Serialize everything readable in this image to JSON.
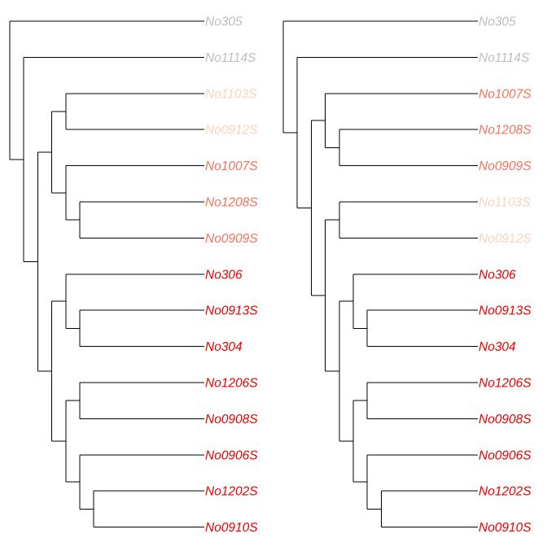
{
  "colors": {
    "gray": "#bebebe",
    "peach": "#fcd3bc",
    "salmon": "#f4735a",
    "red": "#ee0000",
    "branch": "#000000"
  },
  "trees": [
    {
      "name": "left-tree",
      "leaves": [
        {
          "label": "No305",
          "color": "gray"
        },
        {
          "label": "No1114S",
          "color": "gray"
        },
        {
          "label": "No1103S",
          "color": "peach"
        },
        {
          "label": "No0912S",
          "color": "peach"
        },
        {
          "label": "No1007S",
          "color": "salmon"
        },
        {
          "label": "No1208S",
          "color": "salmon"
        },
        {
          "label": "No0909S",
          "color": "salmon"
        },
        {
          "label": "No306",
          "color": "red"
        },
        {
          "label": "No0913S",
          "color": "red"
        },
        {
          "label": "No304",
          "color": "red"
        },
        {
          "label": "No1206S",
          "color": "red"
        },
        {
          "label": "No0908S",
          "color": "red"
        },
        {
          "label": "No0906S",
          "color": "red"
        },
        {
          "label": "No1202S",
          "color": "red"
        },
        {
          "label": "No0910S",
          "color": "red"
        }
      ],
      "newick": "(No305,(No1114S,(((No1103S,No0912S),(No1007S,(No1208S,No0909S))),((No306,(No0913S,No304)),((No1206S,No0908S),(No0906S,(No1202S,No0910S)))))))"
    },
    {
      "name": "right-tree",
      "leaves": [
        {
          "label": "No305",
          "color": "gray"
        },
        {
          "label": "No1114S",
          "color": "gray"
        },
        {
          "label": "No1007S",
          "color": "salmon"
        },
        {
          "label": "No1208S",
          "color": "salmon"
        },
        {
          "label": "No0909S",
          "color": "salmon"
        },
        {
          "label": "No1103S",
          "color": "peach"
        },
        {
          "label": "No0912S",
          "color": "peach"
        },
        {
          "label": "No306",
          "color": "red"
        },
        {
          "label": "No0913S",
          "color": "red"
        },
        {
          "label": "No304",
          "color": "red"
        },
        {
          "label": "No1206S",
          "color": "red"
        },
        {
          "label": "No0908S",
          "color": "red"
        },
        {
          "label": "No0906S",
          "color": "red"
        },
        {
          "label": "No1202S",
          "color": "red"
        },
        {
          "label": "No0910S",
          "color": "red"
        }
      ],
      "newick": "(No305,(No1114S,((No1007S,(No1208S,No0909S)),((No1103S,No0912S),((No306,(No0913S,No304)),((No1206S,No0908S),(No0906S,(No1202S,No0910S))))))))"
    }
  ]
}
